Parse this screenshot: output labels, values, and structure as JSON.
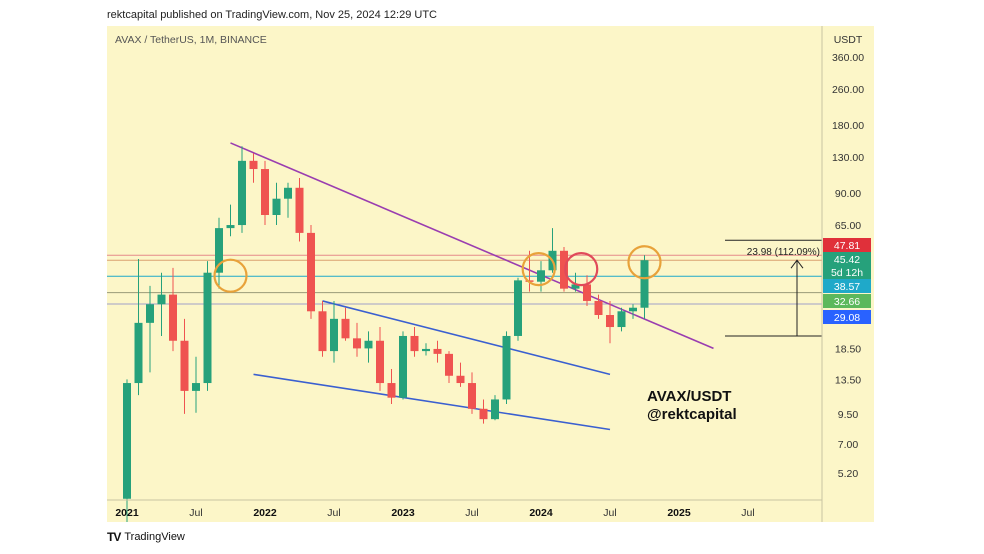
{
  "header": {
    "text": "rektcapital published on TradingView.com, Nov 25, 2024 12:29 UTC"
  },
  "footer": {
    "logo": "TV",
    "brand": "TradingView"
  },
  "chart_data": {
    "type": "candlestick",
    "symbol_line": "AVAX / TetherUS, 1M, BINANCE",
    "y_axis_title": "USDT",
    "y_scale": "log",
    "y_ticks": [
      "360.00",
      "260.00",
      "180.00",
      "130.00",
      "90.00",
      "65.00",
      "18.50",
      "13.50",
      "9.50",
      "7.00",
      "5.20"
    ],
    "x_ticks": [
      "2021",
      "Jul",
      "2022",
      "Jul",
      "2023",
      "Jul",
      "2024",
      "Jul",
      "2025",
      "Jul"
    ],
    "price_labels": [
      {
        "text": "47.81",
        "value": 47.81,
        "color": "#e0303a"
      },
      {
        "text": "45.42",
        "value": 45.42,
        "color": "#26a17b"
      },
      {
        "text": "5d 12h",
        "value": 41.2,
        "color": "#26a17b"
      },
      {
        "text": "38.57",
        "value": 38.57,
        "color": "#1fa9c9"
      },
      {
        "text": "32.66",
        "value": 32.66,
        "color": "#5cb85c"
      },
      {
        "text": "29.08",
        "value": 29.08,
        "color": "#2962ff"
      }
    ],
    "measure_label": "23.98 (112.09%)",
    "watermark": [
      "AVAX/USDT",
      "@rektcapital"
    ],
    "candles": [
      {
        "t": 0,
        "o": 4.0,
        "h": 13.5,
        "l": 2.8,
        "c": 13.0
      },
      {
        "t": 1,
        "o": 13.0,
        "h": 46,
        "l": 11.5,
        "c": 24.0
      },
      {
        "t": 2,
        "o": 24.0,
        "h": 35,
        "l": 14.5,
        "c": 29.0
      },
      {
        "t": 3,
        "o": 29.0,
        "h": 40,
        "l": 21,
        "c": 32.0
      },
      {
        "t": 4,
        "o": 32.0,
        "h": 42,
        "l": 18,
        "c": 20.0
      },
      {
        "t": 5,
        "o": 20.0,
        "h": 25,
        "l": 9.5,
        "c": 12.0
      },
      {
        "t": 6,
        "o": 12.0,
        "h": 17,
        "l": 9.6,
        "c": 13.0
      },
      {
        "t": 7,
        "o": 13.0,
        "h": 45,
        "l": 12.0,
        "c": 40.0
      },
      {
        "t": 8,
        "o": 40.0,
        "h": 70,
        "l": 34,
        "c": 63.0
      },
      {
        "t": 9,
        "o": 63.0,
        "h": 80,
        "l": 58,
        "c": 65.0
      },
      {
        "t": 10,
        "o": 65.0,
        "h": 145,
        "l": 60,
        "c": 125.0
      },
      {
        "t": 11,
        "o": 125.0,
        "h": 135,
        "l": 100,
        "c": 115.0
      },
      {
        "t": 12,
        "o": 115.0,
        "h": 125,
        "l": 65,
        "c": 72.0
      },
      {
        "t": 13,
        "o": 72.0,
        "h": 100,
        "l": 65,
        "c": 85.0
      },
      {
        "t": 14,
        "o": 85.0,
        "h": 100,
        "l": 70,
        "c": 95.0
      },
      {
        "t": 15,
        "o": 95.0,
        "h": 105,
        "l": 55,
        "c": 60.0
      },
      {
        "t": 16,
        "o": 60.0,
        "h": 65,
        "l": 25,
        "c": 27.0
      },
      {
        "t": 17,
        "o": 27.0,
        "h": 30,
        "l": 17,
        "c": 18.0
      },
      {
        "t": 18,
        "o": 18.0,
        "h": 30,
        "l": 16,
        "c": 25.0
      },
      {
        "t": 19,
        "o": 25.0,
        "h": 28,
        "l": 20,
        "c": 20.5
      },
      {
        "t": 20,
        "o": 20.5,
        "h": 24,
        "l": 17,
        "c": 18.5
      },
      {
        "t": 21,
        "o": 18.5,
        "h": 22,
        "l": 16,
        "c": 20.0
      },
      {
        "t": 22,
        "o": 20.0,
        "h": 23,
        "l": 12,
        "c": 13.0
      },
      {
        "t": 23,
        "o": 13.0,
        "h": 15,
        "l": 10.5,
        "c": 11.2
      },
      {
        "t": 24,
        "o": 11.2,
        "h": 22,
        "l": 11,
        "c": 21.0
      },
      {
        "t": 25,
        "o": 21.0,
        "h": 23,
        "l": 17,
        "c": 18.0
      },
      {
        "t": 26,
        "o": 18.0,
        "h": 19.5,
        "l": 17.2,
        "c": 18.4
      },
      {
        "t": 27,
        "o": 18.4,
        "h": 20,
        "l": 16,
        "c": 17.5
      },
      {
        "t": 28,
        "o": 17.5,
        "h": 18,
        "l": 13,
        "c": 14.0
      },
      {
        "t": 29,
        "o": 14.0,
        "h": 16,
        "l": 12.5,
        "c": 13.0
      },
      {
        "t": 30,
        "o": 13.0,
        "h": 14.5,
        "l": 9.5,
        "c": 10.0
      },
      {
        "t": 31,
        "o": 10.0,
        "h": 11,
        "l": 8.6,
        "c": 9.0
      },
      {
        "t": 32,
        "o": 9.0,
        "h": 11.5,
        "l": 8.9,
        "c": 11.0
      },
      {
        "t": 33,
        "o": 11.0,
        "h": 22,
        "l": 10.5,
        "c": 21.0
      },
      {
        "t": 34,
        "o": 21.0,
        "h": 38,
        "l": 20,
        "c": 37.0
      },
      {
        "t": 35,
        "o": 37.0,
        "h": 50,
        "l": 33,
        "c": 36.5
      },
      {
        "t": 36,
        "o": 36.5,
        "h": 45,
        "l": 33,
        "c": 41.0
      },
      {
        "t": 37,
        "o": 41.0,
        "h": 63,
        "l": 40,
        "c": 50.0
      },
      {
        "t": 38,
        "o": 50.0,
        "h": 52,
        "l": 33,
        "c": 34.0
      },
      {
        "t": 39,
        "o": 34.0,
        "h": 40,
        "l": 33,
        "c": 35.5
      },
      {
        "t": 40,
        "o": 35.5,
        "h": 39,
        "l": 28.5,
        "c": 30.0
      },
      {
        "t": 41,
        "o": 30.0,
        "h": 32,
        "l": 25,
        "c": 26.0
      },
      {
        "t": 42,
        "o": 26.0,
        "h": 30,
        "l": 19.5,
        "c": 23.0
      },
      {
        "t": 43,
        "o": 23.0,
        "h": 28,
        "l": 22,
        "c": 27.0
      },
      {
        "t": 44,
        "o": 27.0,
        "h": 29,
        "l": 25,
        "c": 28.0
      },
      {
        "t": 45,
        "o": 28.0,
        "h": 47.81,
        "l": 25,
        "c": 45.42
      }
    ],
    "h_lines": [
      {
        "value": 47.81,
        "color": "#e58a8a"
      },
      {
        "value": 45.42,
        "color": "#d9a070"
      },
      {
        "value": 38.57,
        "color": "#1fa9c9"
      },
      {
        "value": 32.66,
        "color": "#9a9a78"
      },
      {
        "value": 29.08,
        "color": "#a0a0c8"
      }
    ],
    "trendlines": [
      {
        "from": [
          9,
          150
        ],
        "to": [
          51,
          18.5
        ],
        "color": "#9a3db0"
      },
      {
        "from": [
          17,
          30
        ],
        "to": [
          42,
          14.2
        ],
        "color": "#3a5fd0"
      },
      {
        "from": [
          11,
          14.2
        ],
        "to": [
          42,
          8.1
        ],
        "color": "#3a5fd0"
      }
    ],
    "circles": [
      {
        "t": 9,
        "value": 38.8,
        "color": "#e8a23a"
      },
      {
        "t": 35.8,
        "value": 41.5,
        "color": "#e8a23a"
      },
      {
        "t": 39.5,
        "value": 41.5,
        "color": "#e04a5a"
      },
      {
        "t": 45,
        "value": 44.5,
        "color": "#e8a23a"
      }
    ],
    "grid": false,
    "bull_color": "#26a17b",
    "bear_color": "#ef5350"
  }
}
